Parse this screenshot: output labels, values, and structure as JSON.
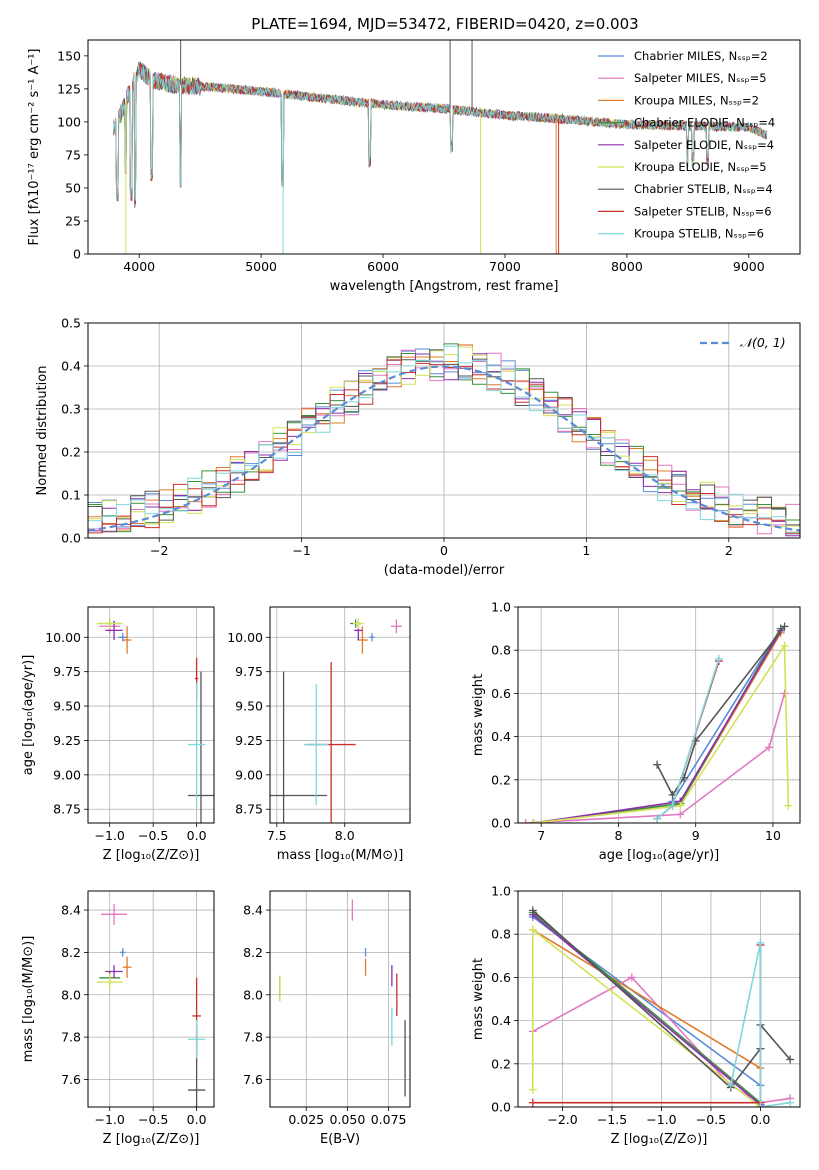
{
  "figure_title": "PLATE=1694, MJD=53472, FIBERID=0420, z=0.003",
  "colors": {
    "Chabrier MILES": "#5a8bd6",
    "Salpeter MILES": "#e377c2",
    "Kroupa MILES": "#e07b2a",
    "Chabrier ELODIE": "#3c8f3c",
    "Salpeter ELODIE": "#8b2fb0",
    "Kroupa ELODIE": "#d4e157",
    "Chabrier STELIB": "#555555",
    "Salpeter STELIB": "#c9302c",
    "Kroupa STELIB": "#7fd6dc",
    "Normal": "#5a8bd6"
  },
  "chart_data": [
    {
      "id": "spectrum",
      "type": "line",
      "title": "PLATE=1694, MJD=53472, FIBERID=0420, z=0.003",
      "xlabel": "wavelength [Angstrom, rest frame]",
      "ylabel": "Flux [fλ10⁻¹⁷ erg cm⁻² s⁻¹ A⁻¹]",
      "xlim": [
        3580,
        9420
      ],
      "ylim": [
        0,
        162
      ],
      "xticks": [
        4000,
        5000,
        6000,
        7000,
        8000,
        9000
      ],
      "yticks": [
        0,
        25,
        50,
        75,
        100,
        125,
        150
      ],
      "grid": false,
      "legend_position": "top-right",
      "series": [
        {
          "name": "Chabrier MILES, Nₛₛₚ=2",
          "key": "Chabrier MILES"
        },
        {
          "name": "Salpeter MILES, Nₛₛₚ=5",
          "key": "Salpeter MILES"
        },
        {
          "name": "Kroupa MILES, Nₛₛₚ=2",
          "key": "Kroupa MILES"
        },
        {
          "name": "Chabrier ELODIE, Nₛₛₚ=4",
          "key": "Chabrier ELODIE"
        },
        {
          "name": "Salpeter ELODIE, Nₛₛₚ=4",
          "key": "Salpeter ELODIE"
        },
        {
          "name": "Kroupa ELODIE, Nₛₛₚ=5",
          "key": "Kroupa ELODIE"
        },
        {
          "name": "Chabrier STELIB, Nₛₛₚ=4",
          "key": "Chabrier STELIB"
        },
        {
          "name": "Salpeter STELIB, Nₛₛₚ=6",
          "key": "Salpeter STELIB"
        },
        {
          "name": "Kroupa STELIB, Nₛₛₚ=6",
          "key": "Kroupa STELIB"
        }
      ],
      "continuum": {
        "x": [
          3800,
          3900,
          4000,
          4100,
          4300,
          4500,
          5000,
          5500,
          6000,
          6500,
          7000,
          7500,
          8000,
          8500,
          9000,
          9150
        ],
        "y": [
          95,
          118,
          140,
          132,
          128,
          127,
          123,
          118,
          113,
          110,
          105,
          102,
          98,
          97,
          96,
          90
        ]
      },
      "absorption_lines": [
        {
          "x": 3820,
          "y": 45
        },
        {
          "x": 3890,
          "y": 65
        },
        {
          "x": 3933,
          "y": 45
        },
        {
          "x": 3968,
          "y": 40
        },
        {
          "x": 4102,
          "y": 60
        },
        {
          "x": 4340,
          "y": 55
        },
        {
          "x": 5175,
          "y": 55
        },
        {
          "x": 5890,
          "y": 70
        },
        {
          "x": 6563,
          "y": 80
        },
        {
          "x": 8498,
          "y": 70
        },
        {
          "x": 8542,
          "y": 72
        },
        {
          "x": 8662,
          "y": 72
        }
      ],
      "spikes": [
        {
          "x": 3890,
          "y": 0,
          "key": "Kroupa ELODIE"
        },
        {
          "x": 4340,
          "y": 162,
          "key": "Chabrier STELIB"
        },
        {
          "x": 5180,
          "y": 0,
          "key": "Kroupa STELIB"
        },
        {
          "x": 6550,
          "y": 162,
          "key": "Chabrier STELIB"
        },
        {
          "x": 6800,
          "y": 0,
          "key": "Kroupa ELODIE"
        },
        {
          "x": 6730,
          "y": 162,
          "key": "Chabrier STELIB"
        },
        {
          "x": 7420,
          "y": 0,
          "key": "Kroupa MILES"
        },
        {
          "x": 7440,
          "y": 0,
          "key": "Salpeter STELIB"
        }
      ]
    },
    {
      "id": "residuals",
      "type": "line",
      "xlabel": "(data-model)/error",
      "ylabel": "Normed distribution",
      "xlim": [
        -2.5,
        2.5
      ],
      "ylim": [
        0,
        0.5
      ],
      "xticks": [
        -2,
        -1,
        0,
        1,
        2
      ],
      "yticks": [
        0.0,
        0.1,
        0.2,
        0.3,
        0.4,
        0.5
      ],
      "grid": true,
      "legend_position": "top-right",
      "legend_label": "𝒩(0, 1)",
      "gaussian": {
        "mean": 0,
        "sigma": 1
      }
    },
    {
      "id": "age_vs_Z",
      "type": "scatter",
      "xlabel": "Z [log₁₀(Z/Z⊙)]",
      "ylabel": "age  [log₁₀(age/yr)]",
      "xlim": [
        -1.25,
        0.2
      ],
      "ylim": [
        8.65,
        10.22
      ],
      "xticks": [
        -1.0,
        -0.5,
        0.0
      ],
      "yticks": [
        8.75,
        9.0,
        9.25,
        9.5,
        9.75,
        10.0
      ],
      "grid": true,
      "points": [
        {
          "key": "Chabrier MILES",
          "x": -0.85,
          "xerr": 0.05,
          "y": 10.0,
          "yerr": 0.03
        },
        {
          "key": "Salpeter MILES",
          "x": -1.0,
          "xerr": 0.12,
          "y": 10.08,
          "yerr": 0.05
        },
        {
          "key": "Kroupa MILES",
          "x": -0.8,
          "xerr": 0.05,
          "y": 9.98,
          "yerr": 0.1
        },
        {
          "key": "Chabrier ELODIE",
          "x": -1.0,
          "xerr": 0.12,
          "y": 10.1,
          "yerr": 0.03
        },
        {
          "key": "Salpeter ELODIE",
          "x": -0.95,
          "xerr": 0.1,
          "y": 10.05,
          "yerr": 0.07
        },
        {
          "key": "Kroupa ELODIE",
          "x": -1.0,
          "xerr": 0.15,
          "y": 10.1,
          "yerr": 0.04
        },
        {
          "key": "Chabrier STELIB",
          "x": 0.05,
          "xerr": 0.15,
          "y": 8.85,
          "yerr": 0.9
        },
        {
          "key": "Salpeter STELIB",
          "x": 0.0,
          "xerr": 0.02,
          "y": 9.7,
          "yerr": 0.15
        },
        {
          "key": "Kroupa STELIB",
          "x": 0.0,
          "xerr": 0.1,
          "y": 9.22,
          "yerr": 0.45
        }
      ]
    },
    {
      "id": "age_vs_mass",
      "type": "scatter",
      "xlabel": "mass [log₁₀(M/M⊙)]",
      "ylabel": "",
      "xlim": [
        7.45,
        8.48
      ],
      "ylim": [
        8.65,
        10.22
      ],
      "xticks": [
        7.5,
        8.0
      ],
      "yticks": [
        8.75,
        9.0,
        9.25,
        9.5,
        9.75,
        10.0
      ],
      "grid": true,
      "points": [
        {
          "key": "Chabrier MILES",
          "x": 8.2,
          "xerr": 0.02,
          "y": 10.0,
          "yerr": 0.03
        },
        {
          "key": "Salpeter MILES",
          "x": 8.38,
          "xerr": 0.04,
          "y": 10.08,
          "yerr": 0.05
        },
        {
          "key": "Kroupa MILES",
          "x": 8.13,
          "xerr": 0.04,
          "y": 9.98,
          "yerr": 0.1
        },
        {
          "key": "Chabrier ELODIE",
          "x": 8.08,
          "xerr": 0.04,
          "y": 10.1,
          "yerr": 0.03
        },
        {
          "key": "Salpeter ELODIE",
          "x": 8.1,
          "xerr": 0.03,
          "y": 10.05,
          "yerr": 0.07
        },
        {
          "key": "Kroupa ELODIE",
          "x": 8.1,
          "xerr": 0.04,
          "y": 10.1,
          "yerr": 0.04
        },
        {
          "key": "Chabrier STELIB",
          "x": 7.55,
          "xerr": 0.32,
          "y": 8.85,
          "yerr": 0.9
        },
        {
          "key": "Salpeter STELIB",
          "x": 7.9,
          "xerr": 0.18,
          "y": 9.22,
          "yerr": 0.6
        },
        {
          "key": "Kroupa STELIB",
          "x": 7.79,
          "xerr": 0.09,
          "y": 9.22,
          "yerr": 0.44
        }
      ]
    },
    {
      "id": "mass_weight_vs_age",
      "type": "line",
      "xlabel": "age  [log₁₀(age/yr)]",
      "ylabel": "mass weight",
      "xlim": [
        6.7,
        10.35
      ],
      "ylim": [
        0,
        1.0
      ],
      "xticks": [
        7,
        8,
        9,
        10
      ],
      "yticks": [
        0.0,
        0.2,
        0.4,
        0.6,
        0.8,
        1.0
      ],
      "grid": true,
      "series": [
        {
          "key": "Chabrier MILES",
          "x": [
            8.7,
            10.1
          ],
          "y": [
            0.1,
            0.9
          ]
        },
        {
          "key": "Salpeter MILES",
          "x": [
            6.8,
            8.8,
            9.95,
            10.15
          ],
          "y": [
            0.0,
            0.04,
            0.35,
            0.6
          ]
        },
        {
          "key": "Kroupa MILES",
          "x": [
            6.9,
            8.8,
            10.1
          ],
          "y": [
            0.0,
            0.09,
            0.88
          ]
        },
        {
          "key": "Chabrier ELODIE",
          "x": [
            6.9,
            8.8,
            10.1
          ],
          "y": [
            0.0,
            0.09,
            0.9
          ]
        },
        {
          "key": "Salpeter ELODIE",
          "x": [
            6.9,
            8.8,
            10.1
          ],
          "y": [
            0.0,
            0.1,
            0.89
          ]
        },
        {
          "key": "Kroupa ELODIE",
          "x": [
            6.9,
            8.8,
            10.15,
            10.2
          ],
          "y": [
            0.0,
            0.08,
            0.82,
            0.08
          ]
        },
        {
          "key": "Chabrier STELIB",
          "x": [
            8.5,
            8.7,
            8.85,
            9.0,
            10.15
          ],
          "y": [
            0.27,
            0.13,
            0.21,
            0.38,
            0.91
          ]
        },
        {
          "key": "Salpeter STELIB",
          "x": [
            8.5,
            8.7,
            9.3
          ],
          "y": [
            0.02,
            0.08,
            0.75
          ]
        },
        {
          "key": "Kroupa STELIB",
          "x": [
            8.5,
            8.7,
            9.3
          ],
          "y": [
            0.02,
            0.08,
            0.76
          ]
        }
      ]
    },
    {
      "id": "mass_vs_Z",
      "type": "scatter",
      "xlabel": "Z [log₁₀(Z/Z⊙)]",
      "ylabel": "mass [log₁₀(M/M⊙)]",
      "xlim": [
        -1.25,
        0.2
      ],
      "ylim": [
        7.47,
        8.49
      ],
      "xticks": [
        -1.0,
        -0.5,
        0.0
      ],
      "yticks": [
        7.6,
        7.8,
        8.0,
        8.2,
        8.4
      ],
      "grid": true,
      "points": [
        {
          "key": "Chabrier MILES",
          "x": -0.85,
          "xerr": 0.03,
          "y": 8.2,
          "yerr": 0.02
        },
        {
          "key": "Salpeter MILES",
          "x": -0.95,
          "xerr": 0.15,
          "y": 8.38,
          "yerr": 0.05
        },
        {
          "key": "Kroupa MILES",
          "x": -0.8,
          "xerr": 0.05,
          "y": 8.13,
          "yerr": 0.05
        },
        {
          "key": "Chabrier ELODIE",
          "x": -1.0,
          "xerr": 0.12,
          "y": 8.08,
          "yerr": 0.03
        },
        {
          "key": "Salpeter ELODIE",
          "x": -0.95,
          "xerr": 0.1,
          "y": 8.11,
          "yerr": 0.03
        },
        {
          "key": "Kroupa ELODIE",
          "x": -1.0,
          "xerr": 0.15,
          "y": 8.06,
          "yerr": 0.04
        },
        {
          "key": "Chabrier STELIB",
          "x": 0.0,
          "xerr": 0.1,
          "y": 7.55,
          "yerr": 0.3
        },
        {
          "key": "Salpeter STELIB",
          "x": 0.0,
          "xerr": 0.05,
          "y": 7.9,
          "yerr": 0.18
        },
        {
          "key": "Kroupa STELIB",
          "x": 0.0,
          "xerr": 0.1,
          "y": 7.79,
          "yerr": 0.09
        }
      ]
    },
    {
      "id": "mass_vs_ebv",
      "type": "scatter",
      "xlabel": "E(B-V)",
      "ylabel": "",
      "xlim": [
        0.003,
        0.088
      ],
      "ylim": [
        7.47,
        8.49
      ],
      "xticks": [
        0.025,
        0.05,
        0.075
      ],
      "xticklabels": [
        "0.025",
        "0.050",
        "0.075"
      ],
      "yticks": [
        7.6,
        7.8,
        8.0,
        8.2,
        8.4
      ],
      "grid": true,
      "points": [
        {
          "key": "Chabrier MILES",
          "x": 0.061,
          "xerr": 0.0,
          "y": 8.2,
          "yerr": 0.02
        },
        {
          "key": "Salpeter MILES",
          "x": 0.053,
          "xerr": 0.0,
          "y": 8.4,
          "yerr": 0.05
        },
        {
          "key": "Kroupa MILES",
          "x": 0.061,
          "xerr": 0.0,
          "y": 8.13,
          "yerr": 0.04
        },
        {
          "key": "Chabrier ELODIE",
          "x": 0.009,
          "xerr": 0.0,
          "y": 8.03,
          "yerr": 0.06
        },
        {
          "key": "Salpeter ELODIE",
          "x": 0.077,
          "xerr": 0.0,
          "y": 8.09,
          "yerr": 0.05
        },
        {
          "key": "Kroupa ELODIE",
          "x": 0.009,
          "xerr": 0.0,
          "y": 8.03,
          "yerr": 0.06
        },
        {
          "key": "Chabrier STELIB",
          "x": 0.085,
          "xerr": 0.0,
          "y": 7.7,
          "yerr": 0.18
        },
        {
          "key": "Salpeter STELIB",
          "x": 0.08,
          "xerr": 0.0,
          "y": 8.0,
          "yerr": 0.1
        },
        {
          "key": "Kroupa STELIB",
          "x": 0.077,
          "xerr": 0.0,
          "y": 7.85,
          "yerr": 0.09
        }
      ]
    },
    {
      "id": "mass_weight_vs_Z",
      "type": "line",
      "xlabel": "Z [log₁₀(Z/Z⊙)]",
      "ylabel": "mass weight",
      "xlim": [
        -2.45,
        0.4
      ],
      "ylim": [
        0,
        1.0
      ],
      "xticks": [
        -2.0,
        -1.5,
        -1.0,
        -0.5,
        0.0
      ],
      "yticks": [
        0.0,
        0.2,
        0.4,
        0.6,
        0.8,
        1.0
      ],
      "grid": true,
      "series": [
        {
          "key": "Chabrier MILES",
          "x": [
            -2.3,
            0.0
          ],
          "y": [
            0.88,
            0.1
          ]
        },
        {
          "key": "Salpeter MILES",
          "x": [
            -2.3,
            -1.3,
            -0.3,
            0.0,
            0.3
          ],
          "y": [
            0.35,
            0.6,
            0.1,
            0.02,
            0.04
          ]
        },
        {
          "key": "Kroupa MILES",
          "x": [
            -2.3,
            0.0
          ],
          "y": [
            0.82,
            0.18
          ]
        },
        {
          "key": "Chabrier ELODIE",
          "x": [
            -2.3,
            0.0
          ],
          "y": [
            0.9,
            0.02
          ]
        },
        {
          "key": "Salpeter ELODIE",
          "x": [
            -2.3,
            0.0
          ],
          "y": [
            0.89,
            0.01
          ]
        },
        {
          "key": "Kroupa ELODIE",
          "x": [
            -2.3,
            -2.3,
            0.0
          ],
          "y": [
            0.08,
            0.82,
            0.0
          ]
        },
        {
          "key": "Chabrier STELIB",
          "x": [
            -2.3,
            -0.3,
            0.0,
            0.0,
            0.3
          ],
          "y": [
            0.91,
            0.09,
            0.27,
            0.38,
            0.22
          ]
        },
        {
          "key": "Salpeter STELIB",
          "x": [
            -2.3,
            0.0,
            0.0,
            0.0
          ],
          "y": [
            0.02,
            0.02,
            0.75,
            0.0
          ]
        },
        {
          "key": "Kroupa STELIB",
          "x": [
            -0.3,
            0.0,
            0.0,
            0.3
          ],
          "y": [
            0.1,
            0.76,
            0.0,
            0.02
          ]
        }
      ]
    }
  ]
}
